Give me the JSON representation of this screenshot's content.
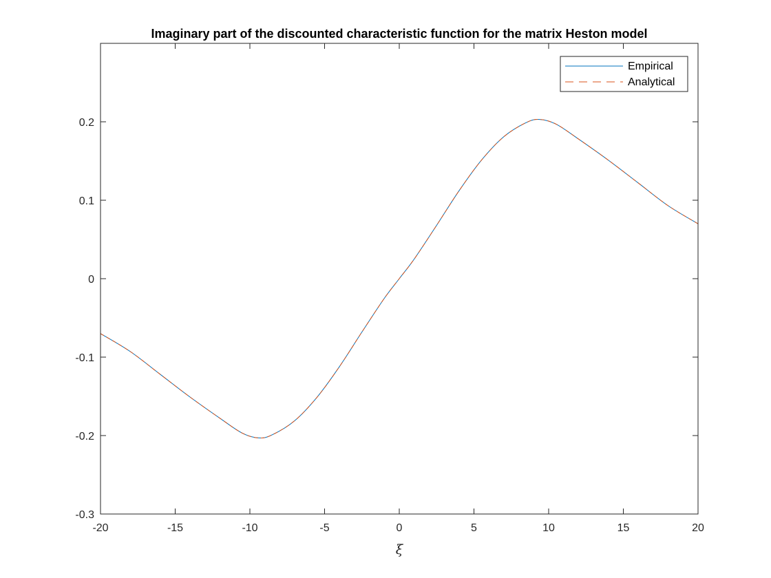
{
  "chart_data": {
    "type": "line",
    "title": "Imaginary part of the discounted characteristic function for the matrix Heston model",
    "xlabel": "ξ",
    "ylabel": "",
    "xlim": [
      -20,
      20
    ],
    "ylim": [
      -0.3,
      0.3
    ],
    "xticks": [
      -20,
      -15,
      -10,
      -5,
      0,
      5,
      10,
      15,
      20
    ],
    "xtick_labels": [
      "-20",
      "-15",
      "-10",
      "-5",
      "0",
      "5",
      "10",
      "15",
      "20"
    ],
    "yticks": [
      -0.3,
      -0.2,
      -0.1,
      0,
      0.1,
      0.2
    ],
    "ytick_labels": [
      "-0.3",
      "-0.2",
      "-0.1",
      "0",
      "0.1",
      "0.2"
    ],
    "grid": false,
    "legend_position": "top-right",
    "x": [
      -20,
      -18,
      -16,
      -14,
      -12,
      -10.5,
      -9.4,
      -8.5,
      -7,
      -5.5,
      -4,
      -2.5,
      -1,
      0,
      1,
      2.5,
      4,
      5.5,
      7,
      8.5,
      9.4,
      10.5,
      12,
      14,
      16,
      18,
      20
    ],
    "series": [
      {
        "name": "Empirical",
        "color": "#0072BD",
        "style": "solid",
        "values": [
          -0.07,
          -0.093,
          -0.122,
          -0.151,
          -0.178,
          -0.197,
          -0.203,
          -0.199,
          -0.181,
          -0.151,
          -0.112,
          -0.068,
          -0.025,
          0.0,
          0.025,
          0.068,
          0.112,
          0.151,
          0.181,
          0.199,
          0.203,
          0.197,
          0.178,
          0.151,
          0.122,
          0.093,
          0.07
        ]
      },
      {
        "name": "Analytical",
        "color": "#D95319",
        "style": "dashed",
        "values": [
          -0.07,
          -0.093,
          -0.122,
          -0.151,
          -0.178,
          -0.197,
          -0.203,
          -0.199,
          -0.181,
          -0.151,
          -0.112,
          -0.068,
          -0.025,
          0.0,
          0.025,
          0.068,
          0.112,
          0.151,
          0.181,
          0.199,
          0.203,
          0.197,
          0.178,
          0.151,
          0.122,
          0.093,
          0.07
        ]
      }
    ]
  }
}
